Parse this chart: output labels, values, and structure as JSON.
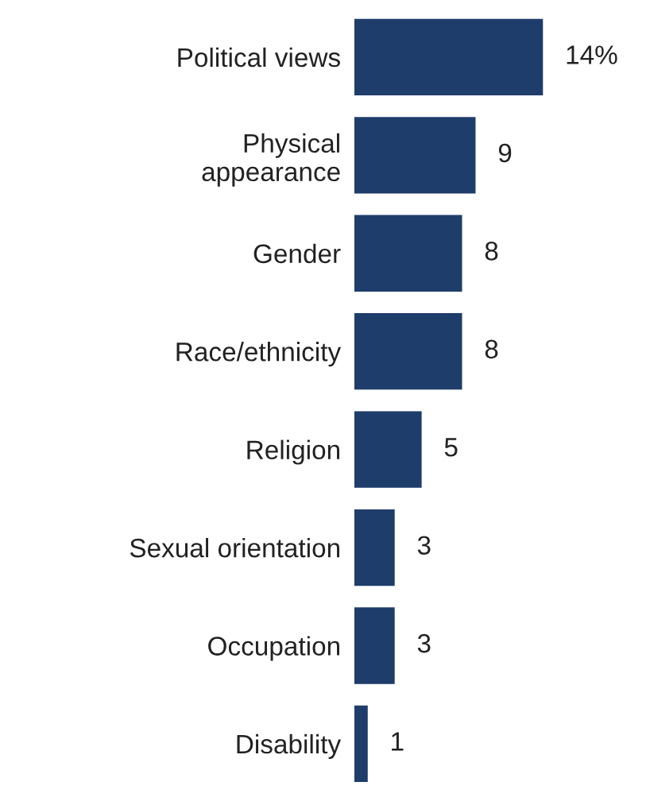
{
  "chart_data": {
    "type": "bar",
    "orientation": "horizontal",
    "categories": [
      "Political views",
      "Physical\nappearance",
      "Gender",
      "Race/ethnicity",
      "Religion",
      "Sexual orientation",
      "Occupation",
      "Disability"
    ],
    "values": [
      14,
      9,
      8,
      8,
      5,
      3,
      3,
      1
    ],
    "value_labels": [
      "14%",
      "9",
      "8",
      "8",
      "5",
      "3",
      "3",
      "1"
    ],
    "color": "#1f3d6b"
  }
}
